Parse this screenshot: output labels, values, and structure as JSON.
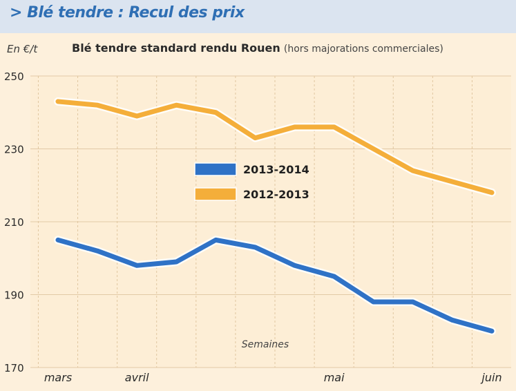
{
  "header": {
    "title": "> Blé tendre : Recul des prix"
  },
  "chart_data": {
    "type": "line",
    "title": "Blé tendre standard rendu Rouen",
    "subtitle": "(hors majorations commerciales)",
    "ylabel": "En €/t",
    "xlabel": "Semaines",
    "ylim": [
      170,
      250
    ],
    "yticks": [
      170,
      190,
      210,
      230,
      250
    ],
    "x": [
      1,
      2,
      3,
      4,
      5,
      6,
      7,
      8,
      9,
      10,
      11,
      12
    ],
    "xtick_labels": [
      {
        "x": 1,
        "label": "mars"
      },
      {
        "x": 3,
        "label": "avril"
      },
      {
        "x": 8,
        "label": "mai"
      },
      {
        "x": 12,
        "label": "juin"
      }
    ],
    "grid": true,
    "legend_position": "center-left",
    "series": [
      {
        "name": "2013-2014",
        "color": "#2f72c6",
        "values": [
          205,
          202,
          198,
          199,
          205,
          203,
          198,
          195,
          188,
          188,
          183,
          180
        ]
      },
      {
        "name": "2012-2013",
        "color": "#f4ae3a",
        "values": [
          243,
          242,
          239,
          242,
          240,
          233,
          236,
          236,
          230,
          224,
          221,
          218
        ]
      }
    ]
  }
}
